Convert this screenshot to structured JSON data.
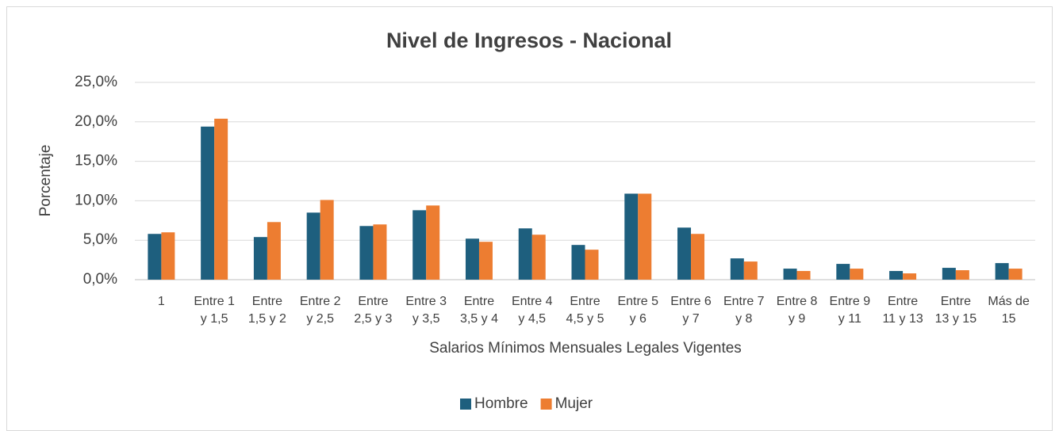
{
  "chart_data": {
    "type": "bar",
    "title": "Nivel de Ingresos - Nacional",
    "y_label": "Porcentaje",
    "x_label": "Salarios Mínimos Mensuales Legales Vigentes",
    "categories": [
      [
        "1"
      ],
      [
        "Entre 1",
        "y 1,5"
      ],
      [
        "Entre",
        "1,5 y 2"
      ],
      [
        "Entre 2",
        "y 2,5"
      ],
      [
        "Entre",
        "2,5 y 3"
      ],
      [
        "Entre 3",
        "y 3,5"
      ],
      [
        "Entre",
        "3,5 y 4"
      ],
      [
        "Entre 4",
        "y 4,5"
      ],
      [
        "Entre",
        "4,5 y 5"
      ],
      [
        "Entre 5",
        "y 6"
      ],
      [
        "Entre 6",
        "y 7"
      ],
      [
        "Entre 7",
        "y 8"
      ],
      [
        "Entre 8",
        "y 9"
      ],
      [
        "Entre 9",
        "y 11"
      ],
      [
        "Entre",
        "11 y 13"
      ],
      [
        "Entre",
        "13 y 15"
      ],
      [
        "Más de",
        "15"
      ]
    ],
    "series": [
      {
        "name": "Hombre",
        "color": "#1e5f7e",
        "values": [
          5.8,
          19.4,
          5.4,
          8.5,
          6.8,
          8.8,
          5.2,
          6.5,
          4.4,
          10.9,
          6.6,
          2.7,
          1.4,
          2.0,
          1.1,
          1.5,
          2.1
        ]
      },
      {
        "name": "Mujer",
        "color": "#ed7d31",
        "values": [
          6.0,
          20.4,
          7.3,
          10.1,
          7.0,
          9.4,
          4.8,
          5.7,
          3.8,
          10.9,
          5.8,
          2.3,
          1.1,
          1.4,
          0.8,
          1.2,
          1.4
        ]
      }
    ],
    "ylim": [
      0,
      25
    ],
    "yticks": [
      {
        "value": 0,
        "label": "0,0%"
      },
      {
        "value": 5,
        "label": "5,0%"
      },
      {
        "value": 10,
        "label": "10,0%"
      },
      {
        "value": 15,
        "label": "15,0%"
      },
      {
        "value": 20,
        "label": "20,0%"
      },
      {
        "value": 25,
        "label": "25,0%"
      }
    ],
    "grid": true,
    "legend": "bottom"
  }
}
